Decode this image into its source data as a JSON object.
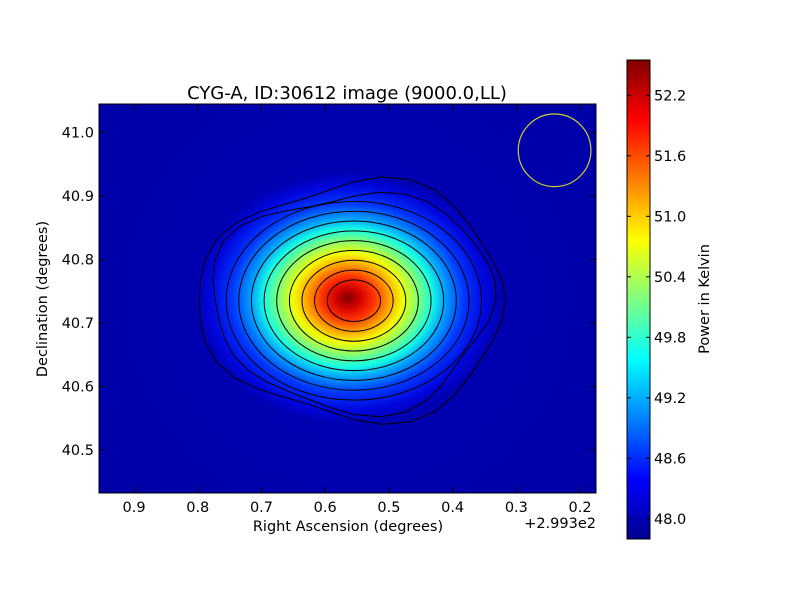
{
  "chart_data": {
    "type": "heatmap",
    "title": "CYG-A, ID:30612 image (9000.0,LL)",
    "xlabel": "Right Ascension (degrees)",
    "ylabel": "Declination (degrees)",
    "x_offset_label": "+2.993e2",
    "x_ticks": [
      "0.9",
      "0.8",
      "0.7",
      "0.6",
      "0.5",
      "0.4",
      "0.3",
      "0.2"
    ],
    "x_tick_values": [
      0.9,
      0.8,
      0.7,
      0.6,
      0.5,
      0.4,
      0.3,
      0.2
    ],
    "xlim": [
      0.955,
      0.175
    ],
    "y_ticks": [
      "40.5",
      "40.6",
      "40.7",
      "40.8",
      "40.9",
      "41.0"
    ],
    "y_tick_values": [
      40.5,
      40.6,
      40.7,
      40.8,
      40.9,
      41.0
    ],
    "ylim": [
      40.432,
      41.045
    ],
    "colorbar": {
      "label": "Power in Kelvin",
      "ticks": [
        "48.0",
        "48.6",
        "49.2",
        "49.8",
        "50.4",
        "51.0",
        "51.6",
        "52.2"
      ],
      "tick_values": [
        48.0,
        48.6,
        49.2,
        49.8,
        50.4,
        51.0,
        51.6,
        52.2
      ],
      "range": [
        47.8,
        52.55
      ],
      "colormap": "jet"
    },
    "source": {
      "ra_center": 0.555,
      "dec_center": 40.735,
      "peak_value": 52.5,
      "background_value": 47.85,
      "contour_levels": 11
    },
    "beam": {
      "ra_center": 0.24,
      "dec_center": 40.972,
      "radius_ra": 0.057,
      "color": "#cccc33"
    }
  }
}
